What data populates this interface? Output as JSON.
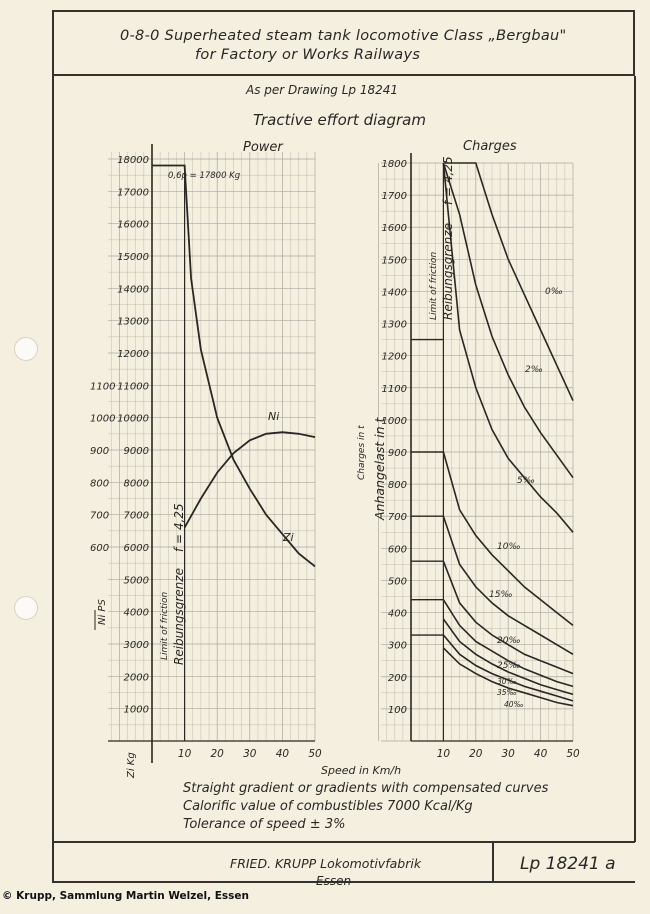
{
  "header": {
    "title_line1": "0-8-0  Superheated steam tank locomotive   Class „Bergbau\"",
    "title_line2": "for Factory or Works Railways"
  },
  "drawing_ref": "As per Drawing Lp 18241",
  "diagram_title": "Tractive effort diagram",
  "notes": [
    "Straight gradient or gradients with compensated curves",
    "Calorific value of combustibles  7000 Kcal/Kg",
    "Tolerance of speed ± 3%"
  ],
  "footer": {
    "maker_line1": "FRIED. KRUPP  Lokomotivfabrik",
    "maker_line2": "Essen",
    "drawing_number": "Lp 18241 a"
  },
  "copyright": "© Krupp, Sammlung Martin Welzel, Essen",
  "colors": {
    "paper": "#f4efdf",
    "grid": "#a9a79f",
    "ink": "#2a2723"
  },
  "chart_data": [
    {
      "type": "line",
      "title": "Power",
      "xlabel": "Speed in Km/h",
      "xlim": [
        0,
        50
      ],
      "x_ticks": [
        "10",
        "20",
        "30",
        "40",
        "50"
      ],
      "ylim_zi": [
        0,
        18000
      ],
      "zi_ticks": [
        "1000",
        "2000",
        "3000",
        "4000",
        "5000",
        "6000",
        "7000",
        "8000",
        "9000",
        "10000",
        "11000",
        "12000",
        "13000",
        "14000",
        "15000",
        "16000",
        "17000",
        "18000"
      ],
      "ni_ticks": [
        "600",
        "700",
        "800",
        "900",
        "1000",
        "1100"
      ],
      "ylabel_zi": "Zi Kg",
      "ylabel_ni": "Ni PS",
      "friction_top_label": "0,6p = 17800 Kg",
      "friction_label_en": "Limit of friction",
      "friction_label_de": "Reibungsgrenze",
      "friction_factor": "f = 4,25",
      "series": [
        {
          "name": "Zi",
          "unit": "Kg",
          "x": [
            0,
            10,
            12,
            15,
            20,
            25,
            30,
            35,
            40,
            45,
            50
          ],
          "y": [
            17800,
            17800,
            14300,
            12100,
            10000,
            8700,
            7800,
            7000,
            6400,
            5800,
            5400
          ]
        },
        {
          "name": "Ni",
          "unit": "PS",
          "x": [
            10,
            15,
            20,
            25,
            30,
            35,
            40,
            45,
            50
          ],
          "y": [
            660,
            750,
            830,
            890,
            930,
            950,
            955,
            950,
            940
          ]
        }
      ]
    },
    {
      "type": "line",
      "title": "Charges",
      "xlim": [
        0,
        50
      ],
      "x_ticks": [
        "10",
        "20",
        "30",
        "40",
        "50"
      ],
      "ylim": [
        0,
        1800
      ],
      "y_ticks": [
        "100",
        "200",
        "300",
        "400",
        "500",
        "600",
        "700",
        "800",
        "900",
        "1000",
        "1100",
        "1200",
        "1300",
        "1400",
        "1500",
        "1600",
        "1700",
        "1800"
      ],
      "ylabel_en": "Charges in t",
      "ylabel_de": "Anhangelast in t",
      "friction_label_en": "Limit of friction",
      "friction_label_de": "Reibungsgrenze",
      "friction_factor": "f = 4,25",
      "x": [
        10,
        15,
        20,
        25,
        30,
        35,
        40,
        45,
        50
      ],
      "series": [
        {
          "name": "0‰",
          "y": [
            1800,
            1800,
            1800,
            1640,
            1500,
            1390,
            1280,
            1170,
            1060
          ]
        },
        {
          "name": "2‰",
          "y": [
            1800,
            1640,
            1420,
            1260,
            1140,
            1040,
            960,
            890,
            820
          ]
        },
        {
          "name": "5‰",
          "y": [
            1800,
            1280,
            1100,
            970,
            880,
            820,
            760,
            710,
            650
          ]
        },
        {
          "name": "10‰",
          "y": [
            900,
            720,
            640,
            580,
            530,
            480,
            440,
            400,
            360
          ]
        },
        {
          "name": "15‰",
          "y": [
            700,
            550,
            480,
            430,
            390,
            360,
            330,
            300,
            270
          ]
        },
        {
          "name": "20‰",
          "y": [
            560,
            430,
            370,
            330,
            300,
            270,
            250,
            230,
            210
          ]
        },
        {
          "name": "25‰",
          "y": [
            440,
            360,
            310,
            280,
            250,
            225,
            205,
            185,
            170
          ]
        },
        {
          "name": "30‰",
          "y": [
            380,
            310,
            270,
            240,
            215,
            195,
            175,
            160,
            145
          ]
        },
        {
          "name": "35‰",
          "y": [
            330,
            270,
            235,
            210,
            190,
            170,
            155,
            140,
            125
          ]
        },
        {
          "name": "40‰",
          "y": [
            290,
            240,
            210,
            185,
            165,
            150,
            135,
            120,
            110
          ]
        }
      ],
      "left_block_values": [
        1250,
        900,
        700,
        560,
        440,
        330
      ]
    }
  ]
}
